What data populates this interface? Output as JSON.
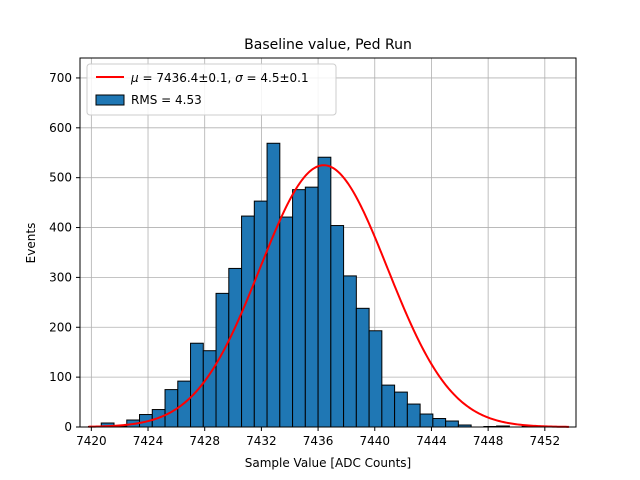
{
  "chart_data": {
    "type": "bar",
    "title": "Baseline value, Ped Run",
    "xlabel": "Sample Value [ADC Counts]",
    "ylabel": "Events",
    "xlim": [
      7419.2,
      7454.2
    ],
    "ylim": [
      0,
      740
    ],
    "xticks": [
      7420,
      7424,
      7428,
      7432,
      7436,
      7440,
      7444,
      7448,
      7452
    ],
    "yticks": [
      0,
      100,
      200,
      300,
      400,
      500,
      600,
      700
    ],
    "grid": true,
    "legend_position": "top-left",
    "histogram": {
      "name": "RMS = 4.53",
      "color": "#1f77b4",
      "edge_color": "#000000",
      "bin_width": 0.9,
      "bin_edges_start": 7419.8,
      "counts": [
        1,
        8,
        2,
        14,
        25,
        35,
        75,
        92,
        168,
        153,
        268,
        318,
        423,
        453,
        569,
        421,
        476,
        481,
        541,
        404,
        303,
        238,
        193,
        84,
        70,
        46,
        26,
        17,
        12,
        4,
        0,
        1,
        2,
        0,
        1,
        1,
        1
      ]
    },
    "fit": {
      "name": "μ = 7436.4±0.1, σ = 4.5±0.1",
      "label_mu": "μ",
      "label_mu_value": "7436.4±0.1",
      "label_sigma": "σ",
      "label_sigma_value": "4.5±0.1",
      "color": "#ff0000",
      "mu": 7436.4,
      "sigma": 4.5,
      "amplitude": 525,
      "x_range": [
        7419.8,
        7453.7
      ]
    }
  }
}
